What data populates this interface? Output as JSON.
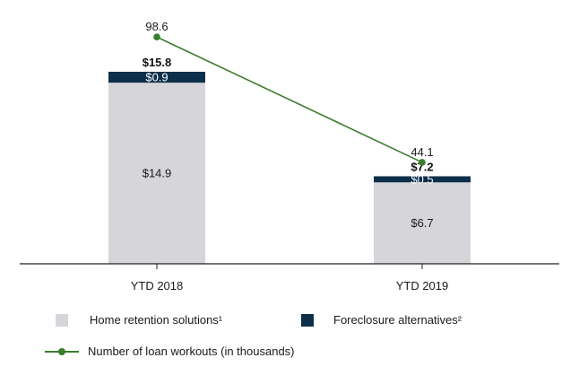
{
  "chart_data": {
    "type": "bar",
    "stacked": true,
    "categories": [
      "YTD 2018",
      "YTD 2019"
    ],
    "series": [
      {
        "name": "Home retention solutions¹",
        "values": [
          14.9,
          6.7
        ],
        "labels": [
          "$14.9",
          "$6.7"
        ],
        "color": "#d6d5d9"
      },
      {
        "name": "Foreclosure alternatives²",
        "values": [
          0.9,
          0.5
        ],
        "labels": [
          "$0.9",
          "$0.5"
        ],
        "color": "#0d2f4a"
      }
    ],
    "totals": {
      "values": [
        15.8,
        7.2
      ],
      "labels": [
        "$15.8",
        "$7.2"
      ]
    },
    "line_series": {
      "name": "Number of loan workouts (in thousands)",
      "values": [
        98.6,
        44.1
      ],
      "labels": [
        "98.6",
        "44.1"
      ],
      "color": "#3a7d2c"
    },
    "bar_ylim": [
      0,
      20
    ],
    "line_ylim": [
      0,
      110
    ],
    "legend_position": "bottom"
  }
}
